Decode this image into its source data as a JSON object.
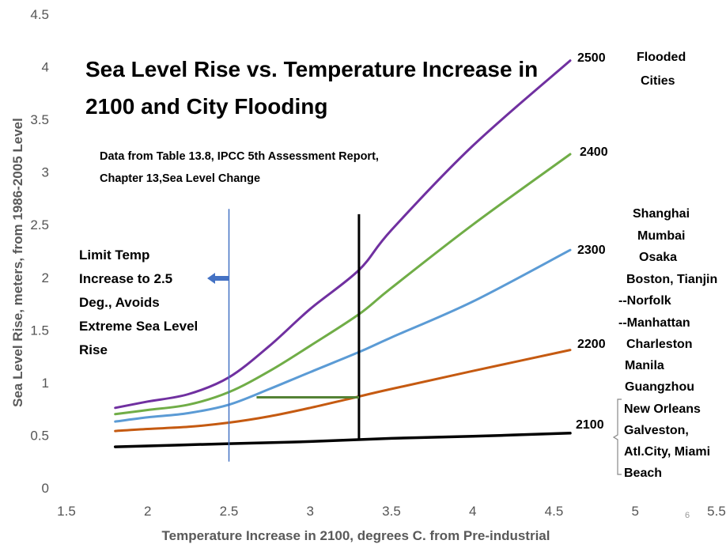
{
  "chart_data": {
    "type": "line",
    "title_lines": [
      "Sea Level Rise vs. Temperature Increase in",
      "2100 and City Flooding"
    ],
    "note_lines": [
      "Data from Table 13.8, IPCC 5th Assessment Report,",
      "Chapter 13,Sea Level Change"
    ],
    "xlabel": "Temperature Increase in 2100, degrees C. from Pre-industrial",
    "ylabel": "Sea Level Rise, meters, from 1986-2005 Level",
    "xlim": [
      1.5,
      5.5
    ],
    "ylim": [
      0,
      4.5
    ],
    "x_ticks": [
      "1.5",
      "2",
      "2.5",
      "3",
      "3.5",
      "4",
      "4.5",
      "5",
      "5.5"
    ],
    "y_ticks": [
      "0",
      "0.5",
      "1",
      "1.5",
      "2",
      "2.5",
      "3",
      "3.5",
      "4",
      "4.5"
    ],
    "grid": false,
    "series": [
      {
        "name": "2100",
        "color": "#000000",
        "points": [
          [
            1.8,
            0.39
          ],
          [
            2.5,
            0.42
          ],
          [
            3.0,
            0.44
          ],
          [
            3.5,
            0.47
          ],
          [
            4.0,
            0.49
          ],
          [
            4.6,
            0.52
          ]
        ]
      },
      {
        "name": "2200",
        "color": "#C55A11",
        "points": [
          [
            1.8,
            0.54
          ],
          [
            2.0,
            0.56
          ],
          [
            2.25,
            0.58
          ],
          [
            2.5,
            0.62
          ],
          [
            2.75,
            0.68
          ],
          [
            3.0,
            0.76
          ],
          [
            3.25,
            0.85
          ],
          [
            3.5,
            0.94
          ],
          [
            4.0,
            1.11
          ],
          [
            4.6,
            1.31
          ]
        ]
      },
      {
        "name": "2300",
        "color": "#5B9BD5",
        "points": [
          [
            1.8,
            0.63
          ],
          [
            2.0,
            0.67
          ],
          [
            2.25,
            0.71
          ],
          [
            2.5,
            0.79
          ],
          [
            2.75,
            0.94
          ],
          [
            3.0,
            1.1
          ],
          [
            3.3,
            1.29
          ],
          [
            3.5,
            1.43
          ],
          [
            4.0,
            1.77
          ],
          [
            4.6,
            2.26
          ]
        ]
      },
      {
        "name": "2400",
        "color": "#70AD47",
        "points": [
          [
            1.8,
            0.7
          ],
          [
            2.0,
            0.74
          ],
          [
            2.25,
            0.79
          ],
          [
            2.5,
            0.91
          ],
          [
            2.75,
            1.11
          ],
          [
            3.0,
            1.35
          ],
          [
            3.3,
            1.65
          ],
          [
            3.5,
            1.9
          ],
          [
            4.0,
            2.5
          ],
          [
            4.6,
            3.17
          ]
        ]
      },
      {
        "name": "2500",
        "color": "#7030A0",
        "points": [
          [
            1.8,
            0.76
          ],
          [
            2.0,
            0.82
          ],
          [
            2.25,
            0.89
          ],
          [
            2.5,
            1.05
          ],
          [
            2.75,
            1.35
          ],
          [
            3.0,
            1.7
          ],
          [
            3.3,
            2.07
          ],
          [
            3.5,
            2.45
          ],
          [
            4.0,
            3.25
          ],
          [
            4.6,
            4.06
          ]
        ]
      }
    ],
    "annotations": {
      "limit_text": [
        "Limit Temp",
        "Increase to 2.5",
        "Deg., Avoids",
        "Extreme Sea Level",
        "Rise"
      ],
      "limit_line_x": 2.5,
      "limit_line_y": [
        0.25,
        2.65
      ],
      "black_vline_x": 3.3,
      "black_vline_y": [
        0.46,
        2.6
      ],
      "green_hline_x": [
        2.67,
        3.3
      ],
      "green_hline_y": 0.86,
      "flooded_header": [
        "Flooded",
        "Cities"
      ],
      "cities": [
        "Shanghai",
        "Mumbai",
        "Osaka",
        "Boston, Tianjin",
        "--Norfolk",
        "--Manhattan",
        "Charleston",
        "Manila",
        "Guangzhou",
        "New Orleans",
        "Galveston,",
        "Atl.City, Miami",
        "Beach"
      ]
    },
    "page_number": "6"
  }
}
